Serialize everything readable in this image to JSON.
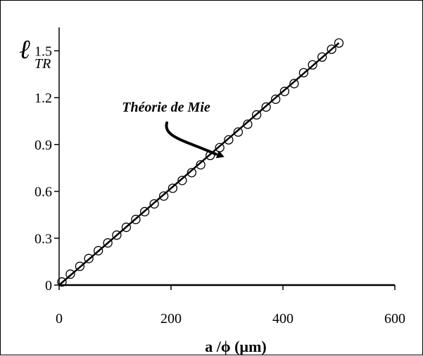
{
  "chart_data": {
    "type": "scatter",
    "ylabel_symbol": "ℓ",
    "ylabel_subscript": "TR",
    "xlabel": "a /ϕ (µm)",
    "xlim": [
      0,
      600
    ],
    "ylim": [
      0,
      1.65
    ],
    "x_ticks": [
      0,
      200,
      400,
      600
    ],
    "y_ticks": [
      0,
      0.3,
      0.6,
      0.9,
      1.2,
      1.5
    ],
    "x_tick_labels": [
      "0",
      "200",
      "400",
      "600"
    ],
    "y_tick_labels": [
      "0",
      "0.3",
      "0.6",
      "0.9",
      "1.2",
      "1.5"
    ],
    "fit_line": {
      "x": [
        0,
        500
      ],
      "y": [
        0,
        1.55
      ]
    },
    "points": {
      "x": [
        5,
        20,
        37,
        53,
        70,
        87,
        103,
        120,
        137,
        153,
        170,
        187,
        203,
        220,
        237,
        253,
        270,
        287,
        303,
        320,
        337,
        353,
        370,
        387,
        403,
        420,
        437,
        453,
        470,
        487,
        500
      ],
      "y": [
        0.02,
        0.07,
        0.12,
        0.17,
        0.22,
        0.27,
        0.32,
        0.37,
        0.42,
        0.47,
        0.52,
        0.57,
        0.62,
        0.67,
        0.72,
        0.77,
        0.83,
        0.88,
        0.93,
        0.98,
        1.03,
        1.09,
        1.14,
        1.19,
        1.24,
        1.29,
        1.36,
        1.41,
        1.46,
        1.51,
        1.55
      ]
    },
    "annotation": {
      "text": "Théorie de Mie",
      "x": 255,
      "y": 0.78
    },
    "grid": false,
    "marker": "open-circle",
    "line_color": "#000000"
  }
}
